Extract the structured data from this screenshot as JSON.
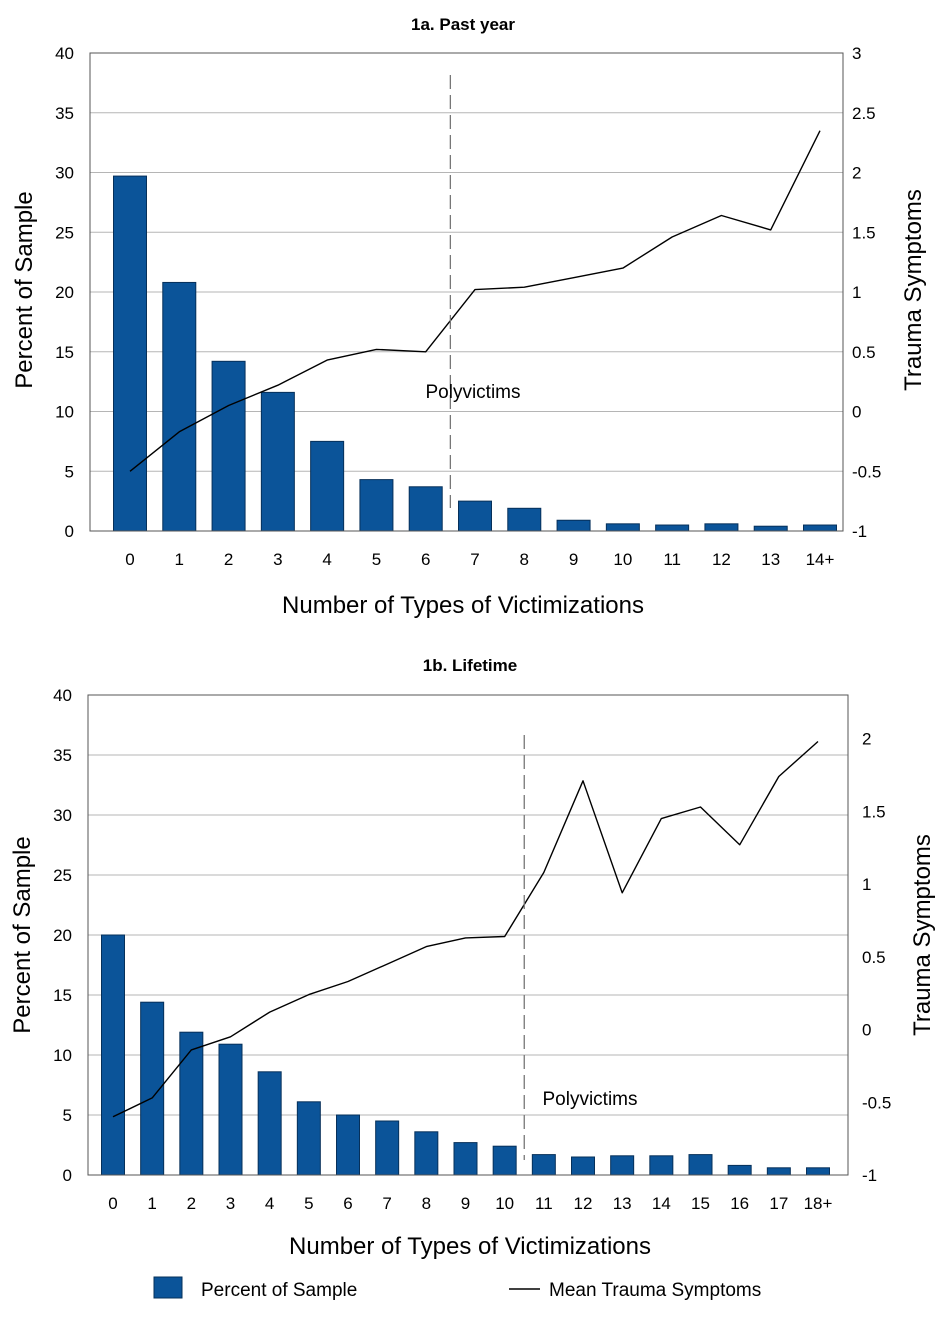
{
  "chart_data": [
    {
      "type": "bar",
      "title": "1a. Past year",
      "xlabel": "Number of Types of Victimizations",
      "ylabel": "Percent of Sample",
      "y2label": "Trauma Symptoms",
      "categories": [
        "0",
        "1",
        "2",
        "3",
        "4",
        "5",
        "6",
        "7",
        "8",
        "9",
        "10",
        "11",
        "12",
        "13",
        "14+"
      ],
      "ylim": [
        0,
        40
      ],
      "yticks": [
        "0",
        "5",
        "10",
        "15",
        "20",
        "25",
        "30",
        "35",
        "40"
      ],
      "y2lim": [
        -1,
        3
      ],
      "y2ticks": [
        "-1",
        "-0.5",
        "0",
        "0.5",
        "1",
        "1.5",
        "2",
        "2.5",
        "3"
      ],
      "grid": true,
      "series": [
        {
          "name": "Percent of Sample",
          "axis": "left",
          "kind": "bar",
          "values": [
            29.7,
            20.8,
            14.2,
            11.6,
            7.5,
            4.3,
            3.7,
            2.5,
            1.9,
            0.9,
            0.6,
            0.5,
            0.6,
            0.4,
            0.5
          ]
        },
        {
          "name": "Mean Trauma Symptoms",
          "axis": "right",
          "kind": "line",
          "values": [
            -0.5,
            -0.17,
            0.05,
            0.22,
            0.43,
            0.52,
            0.5,
            1.02,
            1.04,
            1.12,
            1.2,
            1.46,
            1.64,
            1.52,
            2.35
          ]
        }
      ],
      "divider_after_index": 6,
      "annotation": "Polyvictims"
    },
    {
      "type": "bar",
      "title": "1b. Lifetime",
      "xlabel": "Number of Types of Victimizations",
      "ylabel": "Percent of Sample",
      "y2label": "Trauma Symptoms",
      "categories": [
        "0",
        "1",
        "2",
        "3",
        "4",
        "5",
        "6",
        "7",
        "8",
        "9",
        "10",
        "11",
        "12",
        "13",
        "14",
        "15",
        "16",
        "17",
        "18+"
      ],
      "ylim": [
        0,
        40
      ],
      "yticks": [
        "0",
        "5",
        "10",
        "15",
        "20",
        "25",
        "30",
        "35",
        "40"
      ],
      "y2lim": [
        -1,
        2.3
      ],
      "y2ticks": [
        "-1",
        "-0.5",
        "0",
        "0.5",
        "1",
        "1.5",
        "2"
      ],
      "grid": true,
      "series": [
        {
          "name": "Percent of Sample",
          "axis": "left",
          "kind": "bar",
          "values": [
            20.0,
            14.4,
            11.9,
            10.9,
            8.6,
            6.1,
            5.0,
            4.5,
            3.6,
            2.7,
            2.4,
            1.7,
            1.5,
            1.6,
            1.6,
            1.7,
            0.8,
            0.6,
            0.6
          ]
        },
        {
          "name": "Mean Trauma Symptoms",
          "axis": "right",
          "kind": "line",
          "values": [
            -0.6,
            -0.47,
            -0.14,
            -0.05,
            0.12,
            0.24,
            0.33,
            0.45,
            0.57,
            0.63,
            0.64,
            1.08,
            1.71,
            0.94,
            1.45,
            1.53,
            1.27,
            1.74,
            1.98
          ]
        }
      ],
      "divider_after_index": 10,
      "annotation": "Polyvictims"
    }
  ],
  "legend": {
    "bar_label": "Percent of Sample",
    "line_label": "Mean Trauma Symptoms",
    "bar_color": "#0b5499",
    "line_color": "#000000"
  },
  "colors": {
    "bar_fill": "#0b5499",
    "bar_stroke": "#06305a",
    "grid": "#b5b5b5",
    "frame": "#555555",
    "divider": "#777777"
  }
}
